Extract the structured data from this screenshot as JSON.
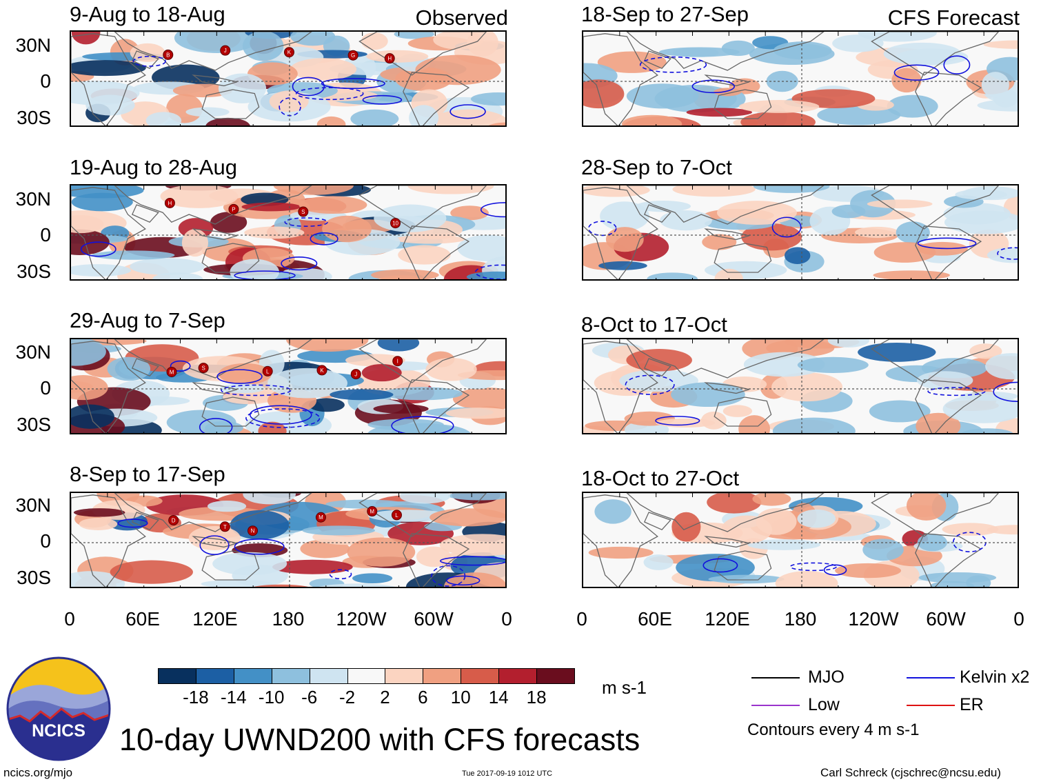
{
  "chart_data": {
    "type": "heatmap",
    "title": "10-day UWND200 with CFS forecasts",
    "variable": "200-hPa zonal wind anomaly",
    "units": "m s-1",
    "x_ticks": [
      "0",
      "60E",
      "120E",
      "180",
      "120W",
      "60W",
      "0"
    ],
    "y_ticks": [
      "30N",
      "0",
      "30S"
    ],
    "colorbar": {
      "labels": [
        "-18",
        "-14",
        "-10",
        "-6",
        "-2",
        "2",
        "6",
        "10",
        "14",
        "18"
      ],
      "colors": [
        "#08305e",
        "#1c5fa4",
        "#4390c6",
        "#8ec0de",
        "#cfe4f1",
        "#f8f8f8",
        "#fbd4c1",
        "#f0a081",
        "#d75c4a",
        "#b31f2e",
        "#6a0d1e"
      ],
      "units": "m s-1"
    },
    "legend": [
      {
        "label": "MJO",
        "color": "#000000"
      },
      {
        "label": "Kelvin x2",
        "color": "#1111dd"
      },
      {
        "label": "Low",
        "color": "#9933cc"
      },
      {
        "label": "ER",
        "color": "#dd1111"
      }
    ],
    "contour_note": "Contours every 4 m s-1",
    "panels": [
      {
        "period": "9-Aug to 18-Aug",
        "label": "Observed",
        "source": "observed",
        "storms": [
          "B",
          "J",
          "K",
          "G",
          "H"
        ]
      },
      {
        "period": "19-Aug to 28-Aug",
        "source": "observed",
        "storms": [
          "H",
          "P",
          "S",
          "10"
        ]
      },
      {
        "period": "29-Aug to 7-Sep",
        "source": "observed",
        "storms": [
          "M",
          "S",
          "L",
          "K",
          "J",
          "I"
        ]
      },
      {
        "period": "8-Sep to 17-Sep",
        "source": "observed",
        "storms": [
          "D",
          "T",
          "N",
          "M",
          "M",
          "L"
        ]
      },
      {
        "period": "18-Sep to 27-Sep",
        "label": "CFS Forecast",
        "source": "forecast",
        "storms": []
      },
      {
        "period": "28-Sep to 7-Oct",
        "source": "forecast",
        "storms": []
      },
      {
        "period": "8-Oct to 17-Oct",
        "source": "forecast",
        "storms": []
      },
      {
        "period": "18-Oct to 27-Oct",
        "source": "forecast",
        "storms": []
      }
    ]
  },
  "footer": {
    "logo_text": "NCICS",
    "url": "ncics.org/mjo",
    "timestamp": "Tue 2017-09-19 1012 UTC",
    "author": "Carl Schreck (cjschrec@ncsu.edu)"
  }
}
